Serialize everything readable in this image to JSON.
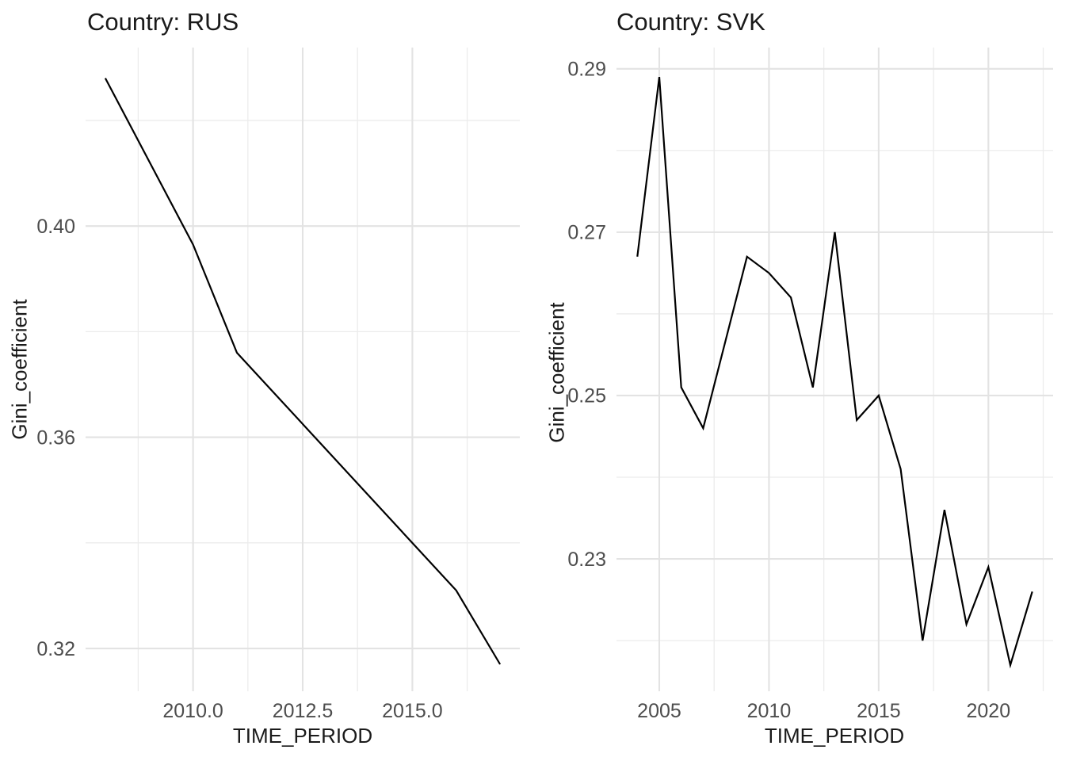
{
  "figure": {
    "background": "#FFFFFF",
    "text_color": "#1A1A1A",
    "tick_label_color": "#4D4D4D",
    "grid_major_color": "#E3E3E3",
    "grid_minor_color": "#ECECEC",
    "line_color": "#000000"
  },
  "chart_data": [
    {
      "type": "line",
      "title": "Country: RUS",
      "series_name": "RUS",
      "xlabel": "TIME_PERIOD",
      "ylabel": "Gini_coefficient",
      "x": [
        2008,
        2010,
        2011,
        2016,
        2017
      ],
      "values": [
        0.428,
        0.3965,
        0.376,
        0.331,
        0.317
      ],
      "xlim": [
        2007.55,
        2017.45
      ],
      "ylim": [
        0.3119,
        0.4338
      ],
      "x_major_ticks": [
        2010.0,
        2012.5,
        2015.0
      ],
      "x_tick_labels": [
        "2010.0",
        "2012.5",
        "2015.0"
      ],
      "x_minor_ticks": [
        2008.75,
        2011.25,
        2013.75,
        2016.25
      ],
      "y_major_ticks": [
        0.32,
        0.36,
        0.4
      ],
      "y_tick_labels": [
        "0.32",
        "0.36",
        "0.40"
      ],
      "y_minor_ticks": [
        0.34,
        0.38,
        0.42
      ],
      "grid": true,
      "legend": "none"
    },
    {
      "type": "line",
      "title": "Country: SVK",
      "series_name": "SVK",
      "xlabel": "TIME_PERIOD",
      "ylabel": "Gini_coefficient",
      "x": [
        2004,
        2005,
        2006,
        2007,
        2009,
        2010,
        2011,
        2012,
        2013,
        2014,
        2015,
        2016,
        2017,
        2018,
        2019,
        2020,
        2021,
        2022
      ],
      "values": [
        0.267,
        0.289,
        0.251,
        0.246,
        0.267,
        0.265,
        0.262,
        0.251,
        0.27,
        0.247,
        0.25,
        0.241,
        0.22,
        0.236,
        0.222,
        0.229,
        0.217,
        0.226
      ],
      "xlim": [
        2003.05,
        2022.95
      ],
      "ylim": [
        0.2138,
        0.2926
      ],
      "x_major_ticks": [
        2005,
        2010,
        2015,
        2020
      ],
      "x_tick_labels": [
        "2005",
        "2010",
        "2015",
        "2020"
      ],
      "x_minor_ticks": [
        2007.5,
        2012.5,
        2017.5,
        2022.5
      ],
      "y_major_ticks": [
        0.23,
        0.25,
        0.27,
        0.29
      ],
      "y_tick_labels": [
        "0.23",
        "0.25",
        "0.27",
        "0.29"
      ],
      "y_minor_ticks": [
        0.22,
        0.24,
        0.26,
        0.28
      ],
      "grid": true,
      "legend": "none"
    }
  ]
}
